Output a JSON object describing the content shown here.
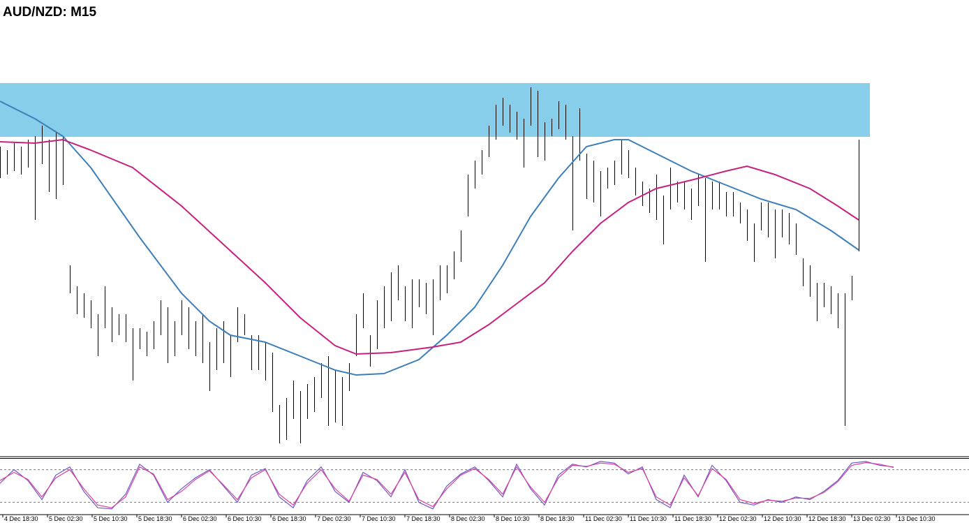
{
  "chart_data": [
    {
      "type": "range",
      "title": "AUD/NZD: M15",
      "xlim": [
        0,
        694
      ],
      "ylim": [
        0,
        600
      ],
      "xticks": [
        {
          "value": 2,
          "label": "4 Dec 18:30"
        },
        {
          "value": 34,
          "label": "5 Dec 02:30"
        },
        {
          "value": 66,
          "label": "5 Dec 10:30"
        },
        {
          "value": 98,
          "label": "5 Dec 18:30"
        },
        {
          "value": 130,
          "label": "6 Dec 02:30"
        },
        {
          "value": 162,
          "label": "6 Dec 10:30"
        },
        {
          "value": 194,
          "label": "6 Dec 18:30"
        },
        {
          "value": 226,
          "label": "7 Dec 02:30"
        },
        {
          "value": 258,
          "label": "7 Dec 10:30"
        },
        {
          "value": 290,
          "label": "7 Dec 18:30"
        },
        {
          "value": 322,
          "label": "8 Dec 02:30"
        },
        {
          "value": 354,
          "label": "8 Dec 10:30"
        },
        {
          "value": 386,
          "label": "8 Dec 18:30"
        },
        {
          "value": 418,
          "label": "11 Dec 02:30"
        },
        {
          "value": 450,
          "label": "11 Dec 10:30"
        },
        {
          "value": 482,
          "label": "11 Dec 18:30"
        },
        {
          "value": 514,
          "label": "12 Dec 02:30"
        },
        {
          "value": 546,
          "label": "12 Dec 10:30"
        },
        {
          "value": 578,
          "label": "12 Dec 18:30"
        },
        {
          "value": 610,
          "label": "13 Dec 02:30"
        },
        {
          "value": 642,
          "label": "13 Dec 10:30"
        }
      ],
      "color": "#000000",
      "zone": {
        "from": 454,
        "to": 531,
        "x_to": 623,
        "color": "#87ceeb"
      },
      "x": [
        0,
        5,
        10,
        15,
        20,
        25,
        30,
        35,
        40,
        45,
        50,
        55,
        60,
        65,
        70,
        75,
        80,
        85,
        90,
        95,
        100,
        105,
        110,
        115,
        120,
        125,
        130,
        135,
        140,
        145,
        150,
        155,
        160,
        165,
        170,
        175,
        180,
        185,
        190,
        195,
        200,
        205,
        210,
        215,
        220,
        225,
        230,
        235,
        240,
        245,
        250,
        255,
        260,
        265,
        270,
        275,
        280,
        285,
        290,
        295,
        300,
        305,
        310,
        315,
        320,
        325,
        330,
        335,
        340,
        345,
        350,
        355,
        360,
        365,
        370,
        375,
        380,
        385,
        390,
        395,
        400,
        405,
        410,
        415,
        420,
        425,
        430,
        435,
        440,
        445,
        450,
        455,
        460,
        465,
        470,
        475,
        480,
        485,
        490,
        495,
        500,
        505,
        510,
        515,
        520,
        525,
        530,
        535,
        540,
        545,
        550,
        555,
        560,
        565,
        570,
        575,
        580,
        585,
        590,
        595,
        600,
        605,
        610,
        615
      ],
      "high": [
        440,
        435,
        445,
        440,
        450,
        455,
        470,
        450,
        460,
        455,
        270,
        240,
        230,
        220,
        200,
        240,
        210,
        200,
        200,
        180,
        180,
        175,
        190,
        220,
        210,
        190,
        220,
        210,
        190,
        200,
        160,
        180,
        190,
        170,
        210,
        200,
        170,
        170,
        160,
        145,
        70,
        80,
        105,
        90,
        100,
        110,
        130,
        140,
        120,
        110,
        130,
        200,
        230,
        170,
        220,
        240,
        260,
        270,
        240,
        250,
        250,
        245,
        250,
        270,
        270,
        290,
        320,
        400,
        420,
        435,
        470,
        500,
        510,
        500,
        490,
        480,
        525,
        520,
        475,
        480,
        505,
        500,
        455,
        495,
        430,
        420,
        405,
        410,
        420,
        450,
        435,
        410,
        390,
        380,
        400,
        370,
        410,
        390,
        390,
        380,
        400,
        395,
        390,
        390,
        375,
        375,
        360,
        350,
        330,
        360,
        360,
        350,
        350,
        345,
        330,
        280,
        270,
        245,
        245,
        240,
        230,
        230,
        255,
        450
      ],
      "low": [
        395,
        400,
        405,
        400,
        410,
        335,
        415,
        375,
        365,
        385,
        230,
        200,
        195,
        180,
        140,
        180,
        160,
        170,
        160,
        105,
        150,
        140,
        150,
        170,
        130,
        140,
        170,
        150,
        140,
        130,
        90,
        120,
        130,
        110,
        160,
        170,
        120,
        120,
        105,
        60,
        15,
        20,
        50,
        15,
        50,
        60,
        80,
        40,
        45,
        40,
        90,
        140,
        180,
        125,
        150,
        180,
        190,
        220,
        190,
        180,
        210,
        200,
        170,
        220,
        230,
        250,
        275,
        340,
        380,
        400,
        425,
        450,
        470,
        460,
        450,
        410,
        470,
        425,
        420,
        455,
        465,
        450,
        320,
        420,
        365,
        360,
        340,
        380,
        385,
        400,
        395,
        370,
        355,
        345,
        335,
        300,
        350,
        360,
        350,
        335,
        355,
        275,
        350,
        350,
        340,
        340,
        330,
        305,
        275,
        320,
        310,
        280,
        310,
        300,
        285,
        240,
        225,
        190,
        210,
        200,
        180,
        40,
        220,
        290
      ],
      "lines": [
        {
          "color": "#3d7fba",
          "x": [
            0,
            25,
            45,
            65,
            100,
            130,
            150,
            165,
            190,
            215,
            240,
            255,
            275,
            300,
            320,
            340,
            360,
            380,
            400,
            420,
            440,
            450,
            470,
            495,
            520,
            545,
            570,
            595,
            615
          ],
          "values": [
            505,
            480,
            455,
            410,
            310,
            230,
            190,
            170,
            160,
            140,
            120,
            113,
            115,
            135,
            170,
            210,
            270,
            340,
            395,
            440,
            450,
            450,
            430,
            405,
            385,
            365,
            350,
            320,
            292
          ]
        },
        {
          "color": "#c8207f",
          "x": [
            0,
            25,
            45,
            65,
            95,
            130,
            160,
            190,
            215,
            240,
            255,
            280,
            310,
            330,
            350,
            370,
            390,
            410,
            430,
            450,
            470,
            495,
            520,
            535,
            555,
            580,
            600,
            615
          ],
          "values": [
            447,
            445,
            450,
            435,
            410,
            355,
            300,
            245,
            195,
            155,
            143,
            145,
            153,
            160,
            185,
            215,
            245,
            290,
            330,
            360,
            380,
            392,
            405,
            412,
            400,
            380,
            355,
            335
          ]
        }
      ]
    },
    {
      "type": "line",
      "xlim": [
        0,
        694
      ],
      "ylim": [
        0,
        100
      ],
      "levels": [
        80,
        20
      ],
      "series": [
        {
          "color": "#6a5acd",
          "x": [
            0,
            10,
            20,
            30,
            40,
            50,
            60,
            70,
            80,
            90,
            100,
            110,
            120,
            130,
            140,
            150,
            160,
            170,
            180,
            190,
            200,
            210,
            220,
            230,
            240,
            250,
            260,
            270,
            280,
            290,
            300,
            310,
            320,
            330,
            340,
            350,
            360,
            370,
            380,
            390,
            400,
            410,
            420,
            430,
            440,
            450,
            460,
            470,
            480,
            490,
            500,
            510,
            520,
            530,
            540,
            550,
            560,
            570,
            580,
            590,
            600,
            610,
            620,
            630,
            640
          ],
          "values": [
            55,
            80,
            60,
            25,
            70,
            85,
            40,
            10,
            8,
            35,
            90,
            70,
            20,
            45,
            65,
            80,
            50,
            20,
            70,
            82,
            30,
            10,
            60,
            85,
            40,
            20,
            75,
            60,
            30,
            80,
            20,
            8,
            50,
            72,
            85,
            60,
            30,
            90,
            45,
            15,
            70,
            90,
            85,
            95,
            92,
            72,
            85,
            25,
            10,
            70,
            30,
            88,
            60,
            20,
            15,
            25,
            20,
            30,
            25,
            40,
            60,
            92,
            95,
            88,
            85
          ]
        },
        {
          "color": "#e0409a",
          "x": [
            0,
            10,
            20,
            30,
            40,
            50,
            60,
            70,
            80,
            90,
            100,
            110,
            120,
            130,
            140,
            150,
            160,
            170,
            180,
            190,
            200,
            210,
            220,
            230,
            240,
            250,
            260,
            270,
            280,
            290,
            300,
            310,
            320,
            330,
            340,
            350,
            360,
            370,
            380,
            390,
            400,
            410,
            420,
            430,
            440,
            450,
            460,
            470,
            480,
            490,
            500,
            510,
            520,
            530,
            540,
            550,
            560,
            570,
            580,
            590,
            600,
            610,
            620,
            630,
            640
          ],
          "values": [
            60,
            75,
            62,
            30,
            65,
            80,
            45,
            15,
            10,
            30,
            85,
            72,
            25,
            40,
            62,
            78,
            52,
            25,
            65,
            80,
            35,
            15,
            55,
            80,
            45,
            22,
            70,
            62,
            35,
            75,
            25,
            12,
            45,
            70,
            82,
            62,
            35,
            85,
            48,
            20,
            65,
            88,
            86,
            92,
            90,
            75,
            82,
            30,
            15,
            65,
            32,
            82,
            62,
            25,
            18,
            24,
            22,
            28,
            27,
            38,
            58,
            88,
            93,
            90,
            84
          ]
        }
      ]
    }
  ]
}
